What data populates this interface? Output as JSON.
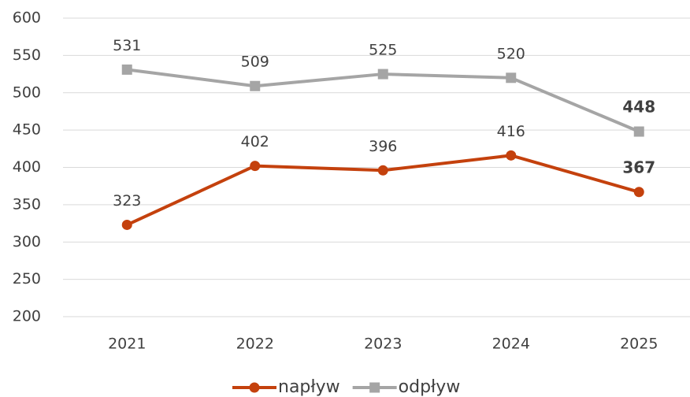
{
  "chart_data": {
    "type": "line",
    "categories": [
      "2021",
      "2022",
      "2023",
      "2024",
      "2025"
    ],
    "series": [
      {
        "name": "napływ",
        "color": "#c4410d",
        "marker": "circle",
        "values": [
          323,
          402,
          396,
          416,
          367
        ]
      },
      {
        "name": "odpływ",
        "color": "#a5a5a5",
        "marker": "square",
        "values": [
          531,
          509,
          525,
          520,
          448
        ]
      }
    ],
    "ylim": [
      200,
      600
    ],
    "yticks": [
      200,
      250,
      300,
      350,
      400,
      450,
      500,
      550,
      600
    ],
    "grid": true,
    "legend": "bottom"
  }
}
